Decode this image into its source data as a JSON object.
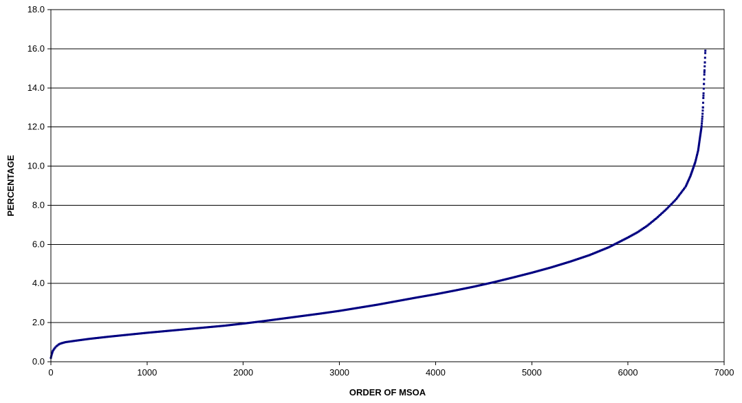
{
  "chart_data": {
    "type": "scatter",
    "xlabel": "ORDER OF MSOA",
    "ylabel": "PERCENTAGE",
    "xlim": [
      0,
      7000
    ],
    "ylim": [
      0,
      18
    ],
    "x_ticks": [
      "0",
      "1000",
      "2000",
      "3000",
      "4000",
      "5000",
      "6000",
      "7000"
    ],
    "y_ticks": [
      "0.0",
      "2.0",
      "4.0",
      "6.0",
      "8.0",
      "10.0",
      "12.0",
      "14.0",
      "16.0",
      "18.0"
    ],
    "grid": "horizontal",
    "marker_color": "#000080",
    "curve_points": [
      [
        0,
        0.2
      ],
      [
        10,
        0.4
      ],
      [
        20,
        0.55
      ],
      [
        40,
        0.7
      ],
      [
        60,
        0.8
      ],
      [
        80,
        0.88
      ],
      [
        100,
        0.93
      ],
      [
        150,
        1.0
      ],
      [
        250,
        1.07
      ],
      [
        400,
        1.17
      ],
      [
        600,
        1.28
      ],
      [
        800,
        1.38
      ],
      [
        1000,
        1.48
      ],
      [
        1200,
        1.57
      ],
      [
        1400,
        1.66
      ],
      [
        1600,
        1.75
      ],
      [
        1800,
        1.84
      ],
      [
        2000,
        1.95
      ],
      [
        2200,
        2.07
      ],
      [
        2400,
        2.2
      ],
      [
        2600,
        2.33
      ],
      [
        2800,
        2.46
      ],
      [
        3000,
        2.6
      ],
      [
        3200,
        2.76
      ],
      [
        3400,
        2.92
      ],
      [
        3600,
        3.1
      ],
      [
        3800,
        3.28
      ],
      [
        4000,
        3.45
      ],
      [
        4200,
        3.64
      ],
      [
        4400,
        3.84
      ],
      [
        4600,
        4.06
      ],
      [
        4800,
        4.3
      ],
      [
        5000,
        4.55
      ],
      [
        5200,
        4.82
      ],
      [
        5400,
        5.12
      ],
      [
        5600,
        5.45
      ],
      [
        5800,
        5.85
      ],
      [
        6000,
        6.35
      ],
      [
        6100,
        6.62
      ],
      [
        6200,
        6.95
      ],
      [
        6300,
        7.35
      ],
      [
        6400,
        7.8
      ],
      [
        6500,
        8.3
      ],
      [
        6600,
        8.95
      ],
      [
        6650,
        9.5
      ],
      [
        6700,
        10.2
      ],
      [
        6730,
        10.8
      ],
      [
        6750,
        11.5
      ],
      [
        6765,
        12.0
      ],
      [
        6775,
        12.6
      ],
      [
        6780,
        13.0
      ],
      [
        6785,
        13.6
      ],
      [
        6790,
        14.2
      ],
      [
        6795,
        14.8
      ],
      [
        6800,
        15.3
      ],
      [
        6805,
        15.9
      ]
    ]
  }
}
